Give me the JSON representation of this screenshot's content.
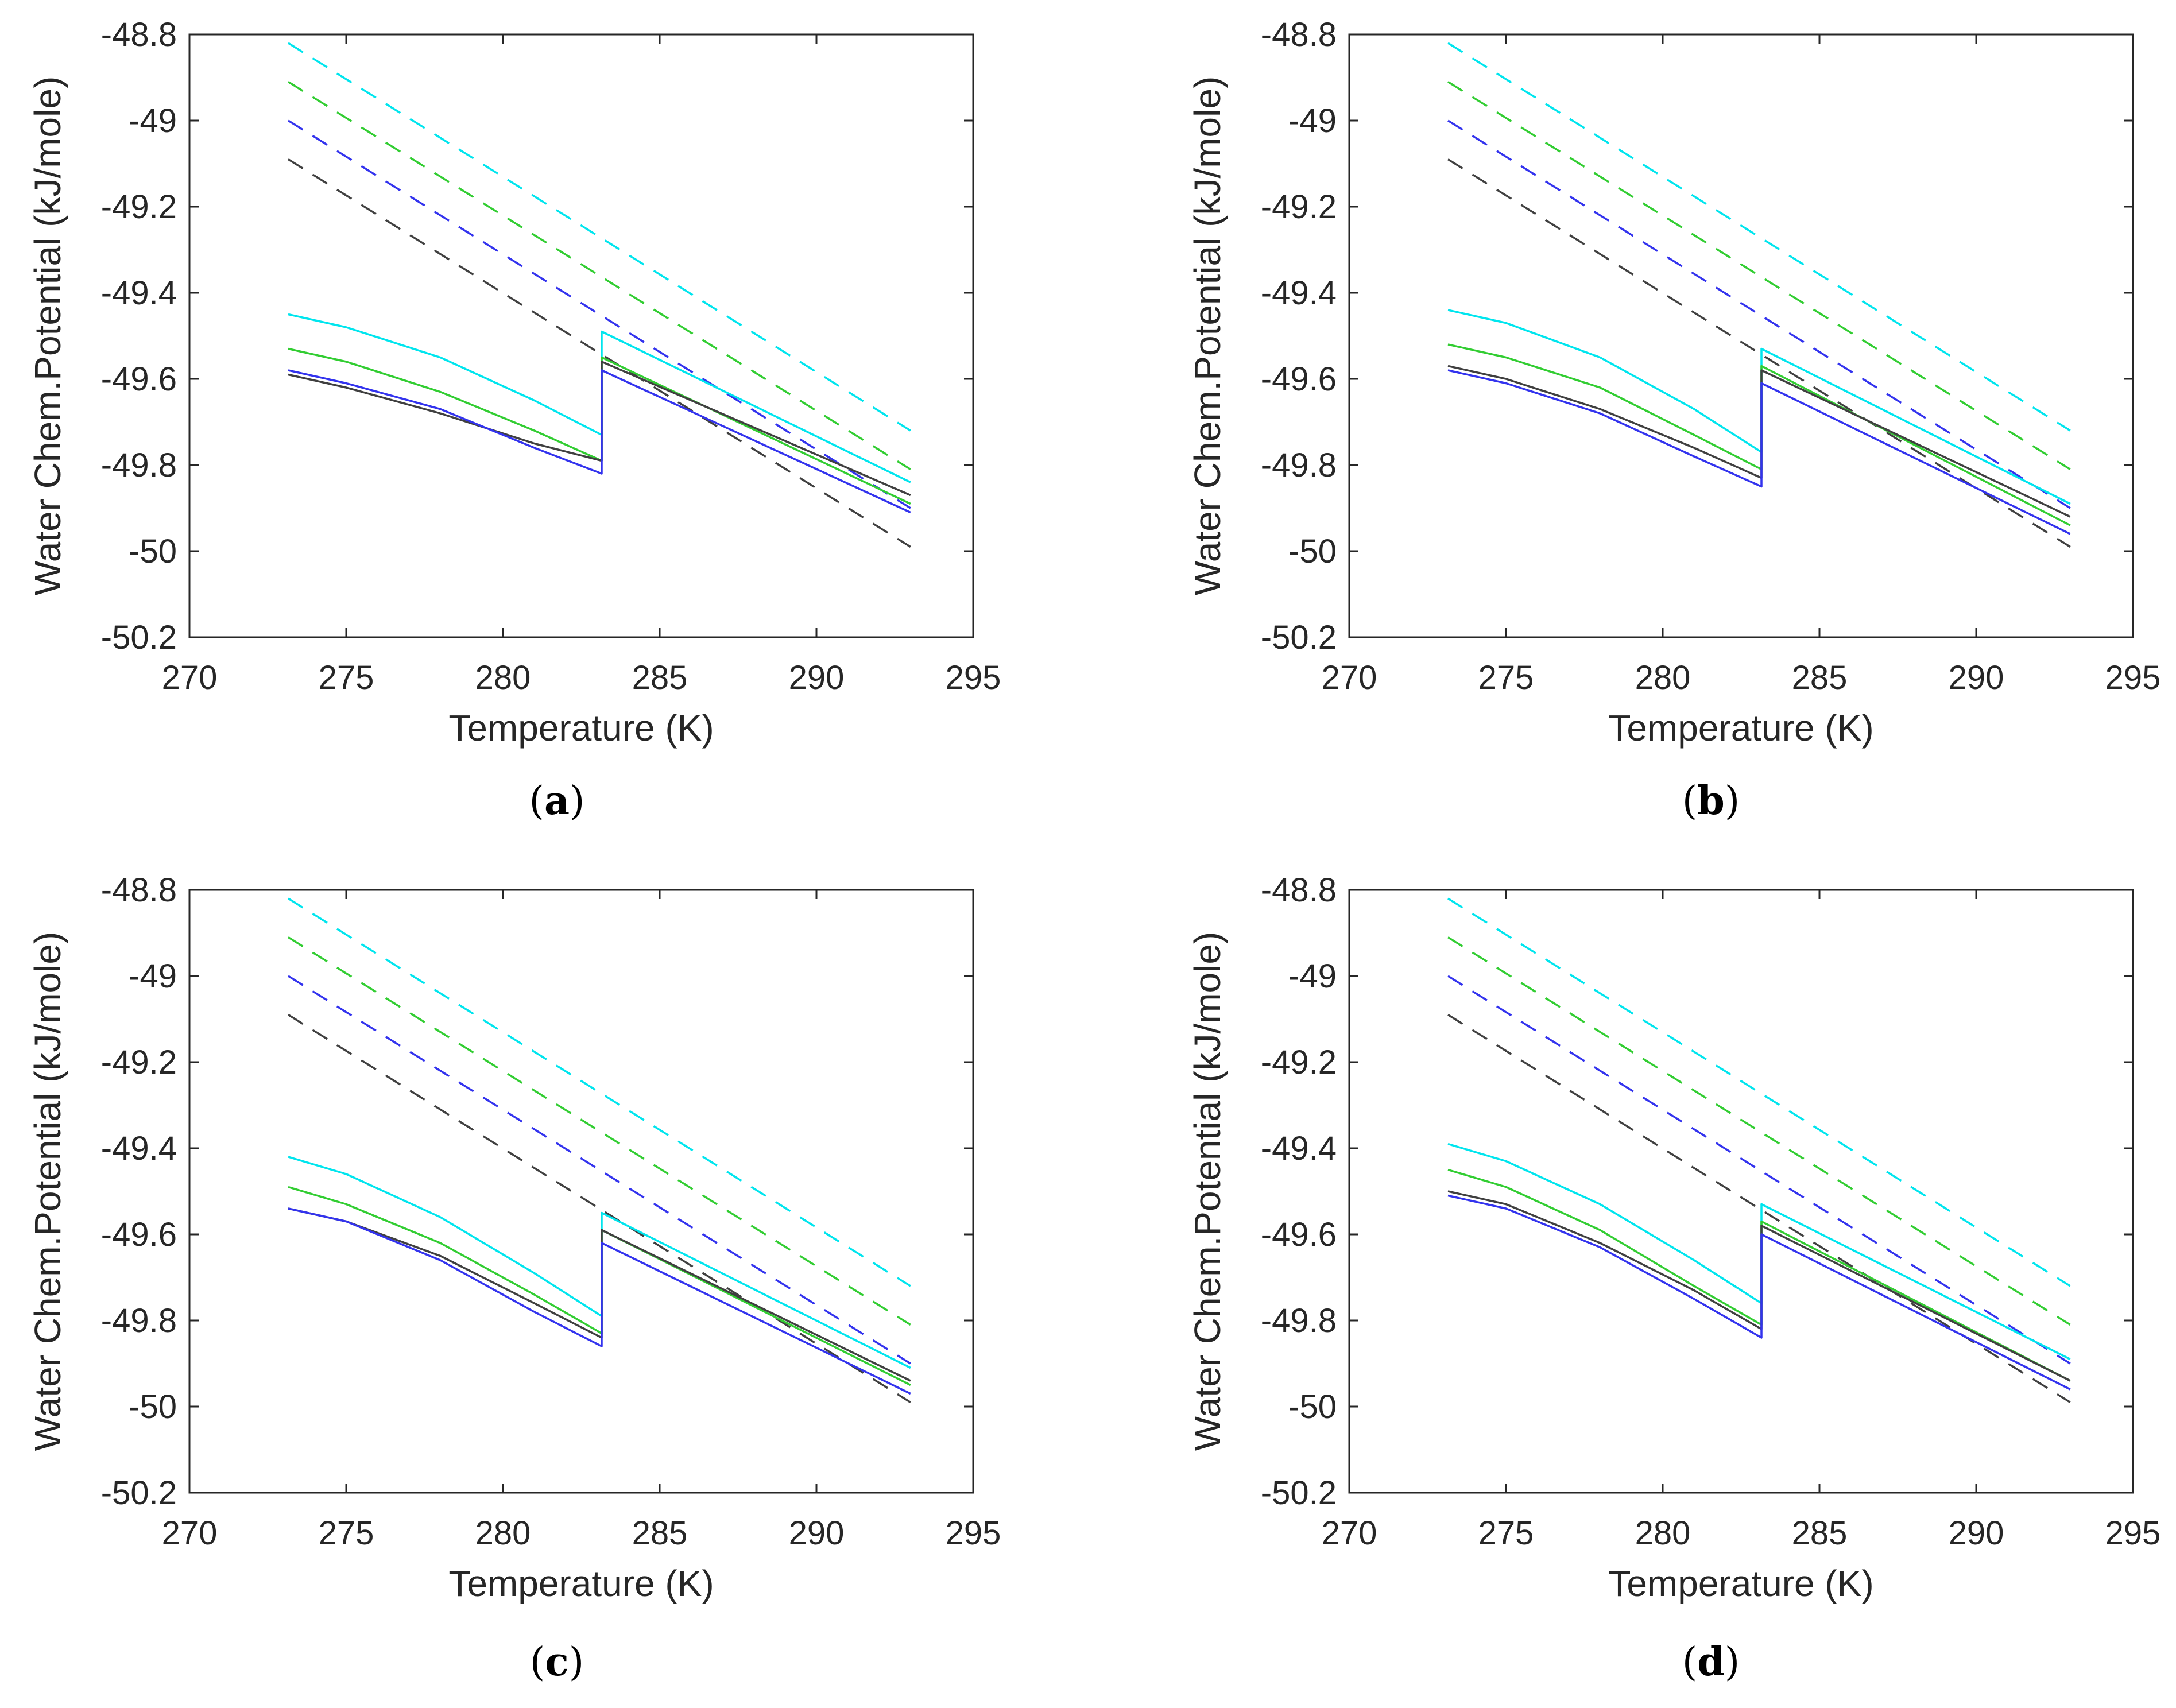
{
  "chart_data": [
    {
      "type": "line",
      "caption": "a",
      "xlabel": "Temperature (K)",
      "ylabel": "Water Chem.Potential (kJ/mole)",
      "xlim": [
        270,
        295
      ],
      "ylim": [
        -50.2,
        -48.8
      ],
      "xticks": [
        "270",
        "275",
        "280",
        "285",
        "290",
        "295"
      ],
      "yticks": [
        "-48.8",
        "-49",
        "-49.2",
        "-49.4",
        "-49.6",
        "-49.8",
        "-50",
        "-50.2"
      ],
      "series": [
        {
          "name": "cyan dashed",
          "color": "#00e5ee",
          "style": "dashed",
          "x": [
            273.15,
            293
          ],
          "y": [
            -48.82,
            -49.72
          ]
        },
        {
          "name": "green dashed",
          "color": "#32cd32",
          "style": "dashed",
          "x": [
            273.15,
            293
          ],
          "y": [
            -48.91,
            -49.81
          ]
        },
        {
          "name": "blue dashed",
          "color": "#3333ee",
          "style": "dashed",
          "x": [
            273.15,
            293
          ],
          "y": [
            -49.0,
            -49.9
          ]
        },
        {
          "name": "black dashed",
          "color": "#404040",
          "style": "dashed",
          "x": [
            273.15,
            293
          ],
          "y": [
            -49.09,
            -49.99
          ]
        },
        {
          "name": "cyan",
          "color": "#00e5ee",
          "style": "solid",
          "x": [
            273.15,
            275,
            278,
            281,
            283.15,
            283.15,
            293
          ],
          "y": [
            -49.45,
            -49.48,
            -49.55,
            -49.65,
            -49.73,
            -49.49,
            -49.84
          ]
        },
        {
          "name": "green",
          "color": "#32cd32",
          "style": "solid",
          "x": [
            273.15,
            275,
            278,
            281,
            283.15,
            283.15,
            293
          ],
          "y": [
            -49.53,
            -49.56,
            -49.63,
            -49.72,
            -49.79,
            -49.55,
            -49.89
          ]
        },
        {
          "name": "black",
          "color": "#404040",
          "style": "solid",
          "x": [
            273.15,
            275,
            278,
            281,
            283.15,
            283.15,
            293
          ],
          "y": [
            -49.59,
            -49.62,
            -49.68,
            -49.75,
            -49.79,
            -49.56,
            -49.87
          ]
        },
        {
          "name": "blue",
          "color": "#3333ee",
          "style": "solid",
          "x": [
            273.15,
            275,
            278,
            281,
            283.15,
            283.15,
            293
          ],
          "y": [
            -49.58,
            -49.61,
            -49.67,
            -49.76,
            -49.82,
            -49.58,
            -49.91
          ]
        }
      ]
    },
    {
      "type": "line",
      "caption": "b",
      "xlabel": "Temperature (K)",
      "ylabel": "Water Chem.Potential (kJ/mole)",
      "xlim": [
        270,
        295
      ],
      "ylim": [
        -50.2,
        -48.8
      ],
      "xticks": [
        "270",
        "275",
        "280",
        "285",
        "290",
        "295"
      ],
      "yticks": [
        "-48.8",
        "-49",
        "-49.2",
        "-49.4",
        "-49.6",
        "-49.8",
        "-50",
        "-50.2"
      ],
      "series": [
        {
          "name": "cyan dashed",
          "color": "#00e5ee",
          "style": "dashed",
          "x": [
            273.15,
            293
          ],
          "y": [
            -48.82,
            -49.72
          ]
        },
        {
          "name": "green dashed",
          "color": "#32cd32",
          "style": "dashed",
          "x": [
            273.15,
            293
          ],
          "y": [
            -48.91,
            -49.81
          ]
        },
        {
          "name": "blue dashed",
          "color": "#3333ee",
          "style": "dashed",
          "x": [
            273.15,
            293
          ],
          "y": [
            -49.0,
            -49.9
          ]
        },
        {
          "name": "black dashed",
          "color": "#404040",
          "style": "dashed",
          "x": [
            273.15,
            293
          ],
          "y": [
            -49.09,
            -49.99
          ]
        },
        {
          "name": "cyan",
          "color": "#00e5ee",
          "style": "solid",
          "x": [
            273.15,
            275,
            278,
            281,
            283.15,
            283.15,
            293
          ],
          "y": [
            -49.44,
            -49.47,
            -49.55,
            -49.67,
            -49.77,
            -49.53,
            -49.89
          ]
        },
        {
          "name": "green",
          "color": "#32cd32",
          "style": "solid",
          "x": [
            273.15,
            275,
            278,
            281,
            283.15,
            283.15,
            293
          ],
          "y": [
            -49.52,
            -49.55,
            -49.62,
            -49.73,
            -49.81,
            -49.57,
            -49.94
          ]
        },
        {
          "name": "black",
          "color": "#404040",
          "style": "solid",
          "x": [
            273.15,
            275,
            278,
            281,
            283.15,
            283.15,
            293
          ],
          "y": [
            -49.57,
            -49.6,
            -49.67,
            -49.76,
            -49.83,
            -49.58,
            -49.92
          ]
        },
        {
          "name": "blue",
          "color": "#3333ee",
          "style": "solid",
          "x": [
            273.15,
            275,
            278,
            281,
            283.15,
            283.15,
            293
          ],
          "y": [
            -49.58,
            -49.61,
            -49.68,
            -49.78,
            -49.85,
            -49.61,
            -49.96
          ]
        }
      ]
    },
    {
      "type": "line",
      "caption": "c",
      "xlabel": "Temperature (K)",
      "ylabel": "Water Chem.Potential (kJ/mole)",
      "xlim": [
        270,
        295
      ],
      "ylim": [
        -50.2,
        -48.8
      ],
      "xticks": [
        "270",
        "275",
        "280",
        "285",
        "290",
        "295"
      ],
      "yticks": [
        "-48.8",
        "-49",
        "-49.2",
        "-49.4",
        "-49.6",
        "-49.8",
        "-50",
        "-50.2"
      ],
      "series": [
        {
          "name": "cyan dashed",
          "color": "#00e5ee",
          "style": "dashed",
          "x": [
            273.15,
            293
          ],
          "y": [
            -48.82,
            -49.72
          ]
        },
        {
          "name": "green dashed",
          "color": "#32cd32",
          "style": "dashed",
          "x": [
            273.15,
            293
          ],
          "y": [
            -48.91,
            -49.81
          ]
        },
        {
          "name": "blue dashed",
          "color": "#3333ee",
          "style": "dashed",
          "x": [
            273.15,
            293
          ],
          "y": [
            -49.0,
            -49.9
          ]
        },
        {
          "name": "black dashed",
          "color": "#404040",
          "style": "dashed",
          "x": [
            273.15,
            293
          ],
          "y": [
            -49.09,
            -49.99
          ]
        },
        {
          "name": "cyan",
          "color": "#00e5ee",
          "style": "solid",
          "x": [
            273.15,
            275,
            278,
            281,
            283.15,
            283.15,
            293
          ],
          "y": [
            -49.42,
            -49.46,
            -49.56,
            -49.69,
            -49.79,
            -49.55,
            -49.91
          ]
        },
        {
          "name": "green",
          "color": "#32cd32",
          "style": "solid",
          "x": [
            273.15,
            275,
            278,
            281,
            283.15,
            283.15,
            293
          ],
          "y": [
            -49.49,
            -49.53,
            -49.62,
            -49.74,
            -49.83,
            -49.59,
            -49.95
          ]
        },
        {
          "name": "black",
          "color": "#404040",
          "style": "solid",
          "x": [
            273.15,
            275,
            278,
            281,
            283.15,
            283.15,
            293
          ],
          "y": [
            -49.54,
            -49.57,
            -49.65,
            -49.76,
            -49.84,
            -49.59,
            -49.94
          ]
        },
        {
          "name": "blue",
          "color": "#3333ee",
          "style": "solid",
          "x": [
            273.15,
            275,
            278,
            281,
            283.15,
            283.15,
            293
          ],
          "y": [
            -49.54,
            -49.57,
            -49.66,
            -49.78,
            -49.86,
            -49.62,
            -49.97
          ]
        }
      ]
    },
    {
      "type": "line",
      "caption": "d",
      "xlabel": "Temperature (K)",
      "ylabel": "Water Chem.Potential (kJ/mole)",
      "xlim": [
        270,
        295
      ],
      "ylim": [
        -50.2,
        -48.8
      ],
      "xticks": [
        "270",
        "275",
        "280",
        "285",
        "290",
        "295"
      ],
      "yticks": [
        "-48.8",
        "-49",
        "-49.2",
        "-49.4",
        "-49.6",
        "-49.8",
        "-50",
        "-50.2"
      ],
      "series": [
        {
          "name": "cyan dashed",
          "color": "#00e5ee",
          "style": "dashed",
          "x": [
            273.15,
            293
          ],
          "y": [
            -48.82,
            -49.72
          ]
        },
        {
          "name": "green dashed",
          "color": "#32cd32",
          "style": "dashed",
          "x": [
            273.15,
            293
          ],
          "y": [
            -48.91,
            -49.81
          ]
        },
        {
          "name": "blue dashed",
          "color": "#3333ee",
          "style": "dashed",
          "x": [
            273.15,
            293
          ],
          "y": [
            -49.0,
            -49.9
          ]
        },
        {
          "name": "black dashed",
          "color": "#404040",
          "style": "dashed",
          "x": [
            273.15,
            293
          ],
          "y": [
            -49.09,
            -49.99
          ]
        },
        {
          "name": "cyan",
          "color": "#00e5ee",
          "style": "solid",
          "x": [
            273.15,
            275,
            278,
            281,
            283.15,
            283.15,
            293
          ],
          "y": [
            -49.39,
            -49.43,
            -49.53,
            -49.66,
            -49.76,
            -49.53,
            -49.89
          ]
        },
        {
          "name": "green",
          "color": "#32cd32",
          "style": "solid",
          "x": [
            273.15,
            275,
            278,
            281,
            283.15,
            283.15,
            293
          ],
          "y": [
            -49.45,
            -49.49,
            -49.59,
            -49.72,
            -49.81,
            -49.57,
            -49.94
          ]
        },
        {
          "name": "black",
          "color": "#404040",
          "style": "solid",
          "x": [
            273.15,
            275,
            278,
            281,
            283.15,
            283.15,
            293
          ],
          "y": [
            -49.5,
            -49.53,
            -49.62,
            -49.73,
            -49.82,
            -49.58,
            -49.94
          ]
        },
        {
          "name": "blue",
          "color": "#3333ee",
          "style": "solid",
          "x": [
            273.15,
            275,
            278,
            281,
            283.15,
            283.15,
            293
          ],
          "y": [
            -49.51,
            -49.54,
            -49.63,
            -49.75,
            -49.84,
            -49.6,
            -49.96
          ]
        }
      ]
    }
  ]
}
